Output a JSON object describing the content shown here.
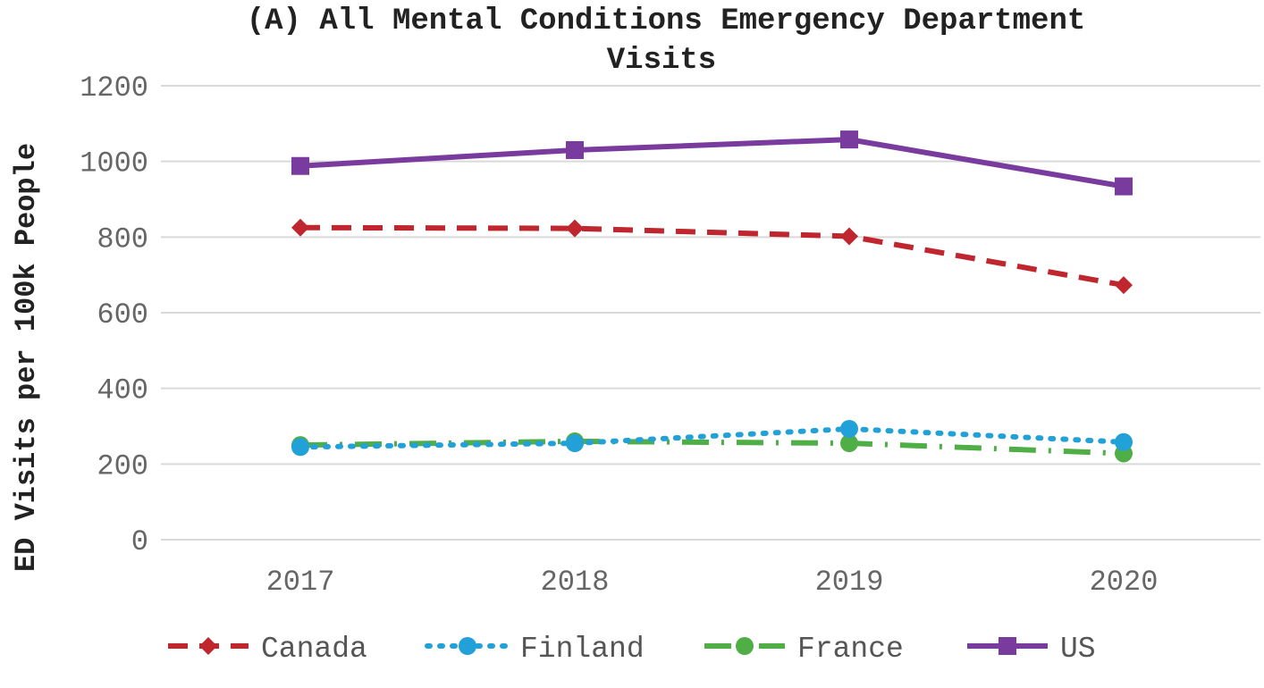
{
  "chart_data": {
    "type": "line",
    "title_line1": "(A) All Mental Conditions Emergency Department",
    "title_line2": "Visits",
    "xlabel": "",
    "ylabel": "ED Visits per 100k People",
    "categories": [
      "2017",
      "2018",
      "2019",
      "2020"
    ],
    "ylim": [
      0,
      1200
    ],
    "yticks": [
      0,
      200,
      400,
      600,
      800,
      1000,
      1200
    ],
    "grid": true,
    "legend_position": "bottom",
    "series": [
      {
        "name": "Canada",
        "values": [
          825,
          823,
          802,
          673
        ],
        "color": "#C0262D",
        "style": "dashed",
        "marker": "diamond"
      },
      {
        "name": "Finland",
        "values": [
          245,
          255,
          293,
          258
        ],
        "color": "#22A0D8",
        "style": "dotted",
        "marker": "circle"
      },
      {
        "name": "France",
        "values": [
          250,
          260,
          255,
          228
        ],
        "color": "#4FAE45",
        "style": "dashdot",
        "marker": "circle"
      },
      {
        "name": "US",
        "values": [
          988,
          1030,
          1058,
          934
        ],
        "color": "#7A3B9E",
        "style": "solid",
        "marker": "square"
      }
    ]
  }
}
